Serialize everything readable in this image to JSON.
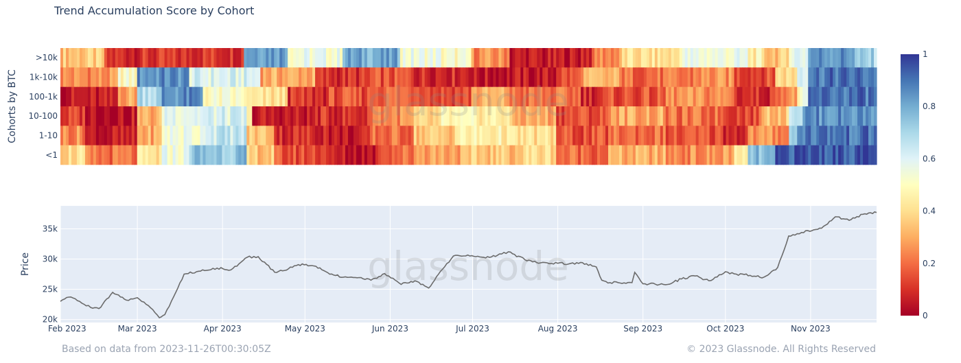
{
  "title": "Trend Accumulation Score by Cohort",
  "footer": {
    "source": "Based on data from 2023-11-26T00:30:05Z",
    "copyright": "© 2023 Glassnode. All Rights Reserved"
  },
  "watermark": "glassnode",
  "chart_data": [
    {
      "type": "heatmap",
      "title": "Trend Accumulation Score by Cohort",
      "ylabel": "Cohorts by BTC",
      "cohorts": [
        ">10k",
        "1k-10k",
        "100-1k",
        "10-100",
        "1-10",
        "<1"
      ],
      "x_start": "2023-02-01",
      "x_end": "2023-11-25",
      "colorscale": [
        "#a50026",
        "#d73027",
        "#f46d43",
        "#fdae61",
        "#fee090",
        "#ffffbf",
        "#e0f3f8",
        "#abd9e9",
        "#74add1",
        "#4575b4",
        "#313695"
      ],
      "colorbar": {
        "ticks": [
          0,
          0.2,
          0.4,
          0.6,
          0.8,
          1
        ],
        "labels": [
          "0",
          "0.2",
          "0.4",
          "0.6",
          "0.8",
          "1"
        ]
      },
      "segments": {
        ">10k": [
          [
            "2023-02-01",
            0.35
          ],
          [
            "2023-02-17",
            0.1
          ],
          [
            "2023-03-20",
            0.12
          ],
          [
            "2023-04-09",
            0.85
          ],
          [
            "2023-04-25",
            0.55
          ],
          [
            "2023-05-15",
            0.8
          ],
          [
            "2023-06-05",
            0.55
          ],
          [
            "2023-06-20",
            0.5
          ],
          [
            "2023-07-01",
            0.25
          ],
          [
            "2023-07-15",
            0.05
          ],
          [
            "2023-08-10",
            0.1
          ],
          [
            "2023-08-15",
            0.25
          ],
          [
            "2023-08-25",
            0.4
          ],
          [
            "2023-09-15",
            0.55
          ],
          [
            "2023-10-10",
            0.45
          ],
          [
            "2023-10-15",
            0.35
          ],
          [
            "2023-10-25",
            0.6
          ],
          [
            "2023-11-01",
            0.85
          ],
          [
            "2023-11-18",
            0.7
          ]
        ],
        "1k-10k": [
          [
            "2023-02-01",
            0.25
          ],
          [
            "2023-02-22",
            0.5
          ],
          [
            "2023-03-01",
            0.85
          ],
          [
            "2023-03-20",
            0.6
          ],
          [
            "2023-04-15",
            0.3
          ],
          [
            "2023-05-05",
            0.1
          ],
          [
            "2023-05-25",
            0.15
          ],
          [
            "2023-06-10",
            0.1
          ],
          [
            "2023-07-01",
            0.05
          ],
          [
            "2023-08-01",
            0.15
          ],
          [
            "2023-08-10",
            0.3
          ],
          [
            "2023-08-25",
            0.2
          ],
          [
            "2023-09-20",
            0.25
          ],
          [
            "2023-10-05",
            0.15
          ],
          [
            "2023-10-20",
            0.4
          ],
          [
            "2023-10-28",
            0.65
          ],
          [
            "2023-11-01",
            0.9
          ]
        ],
        "100-1k": [
          [
            "2023-02-01",
            0.05
          ],
          [
            "2023-02-22",
            0.3
          ],
          [
            "2023-03-01",
            0.7
          ],
          [
            "2023-03-10",
            0.85
          ],
          [
            "2023-03-25",
            0.5
          ],
          [
            "2023-04-10",
            0.4
          ],
          [
            "2023-04-25",
            0.1
          ],
          [
            "2023-05-10",
            0.15
          ],
          [
            "2023-05-25",
            0.2
          ],
          [
            "2023-06-15",
            0.15
          ],
          [
            "2023-07-01",
            0.3
          ],
          [
            "2023-07-15",
            0.2
          ],
          [
            "2023-08-10",
            0.1
          ],
          [
            "2023-08-20",
            0.15
          ],
          [
            "2023-09-10",
            0.25
          ],
          [
            "2023-10-05",
            0.1
          ],
          [
            "2023-10-20",
            0.25
          ],
          [
            "2023-10-28",
            0.5
          ],
          [
            "2023-11-01",
            0.9
          ]
        ],
        "10-100": [
          [
            "2023-02-01",
            0.12
          ],
          [
            "2023-02-10",
            0.05
          ],
          [
            "2023-03-01",
            0.3
          ],
          [
            "2023-03-10",
            0.6
          ],
          [
            "2023-04-10",
            0.4
          ],
          [
            "2023-04-12",
            0.05
          ],
          [
            "2023-05-05",
            0.1
          ],
          [
            "2023-05-25",
            0.25
          ],
          [
            "2023-06-10",
            0.35
          ],
          [
            "2023-06-20",
            0.45
          ],
          [
            "2023-07-15",
            0.3
          ],
          [
            "2023-08-01",
            0.15
          ],
          [
            "2023-08-20",
            0.3
          ],
          [
            "2023-09-10",
            0.2
          ],
          [
            "2023-10-01",
            0.15
          ],
          [
            "2023-10-15",
            0.35
          ],
          [
            "2023-10-25",
            0.7
          ],
          [
            "2023-10-30",
            0.85
          ]
        ],
        "1-10": [
          [
            "2023-02-01",
            0.25
          ],
          [
            "2023-02-10",
            0.05
          ],
          [
            "2023-03-01",
            0.3
          ],
          [
            "2023-03-10",
            0.55
          ],
          [
            "2023-03-25",
            0.65
          ],
          [
            "2023-04-10",
            0.35
          ],
          [
            "2023-04-20",
            0.1
          ],
          [
            "2023-05-10",
            0.05
          ],
          [
            "2023-05-25",
            0.2
          ],
          [
            "2023-06-10",
            0.35
          ],
          [
            "2023-06-25",
            0.45
          ],
          [
            "2023-07-15",
            0.4
          ],
          [
            "2023-08-01",
            0.15
          ],
          [
            "2023-08-20",
            0.2
          ],
          [
            "2023-09-10",
            0.15
          ],
          [
            "2023-10-01",
            0.1
          ],
          [
            "2023-10-10",
            0.25
          ],
          [
            "2023-10-25",
            0.7
          ],
          [
            "2023-10-28",
            0.9
          ]
        ],
        "<1": [
          [
            "2023-02-01",
            0.4
          ],
          [
            "2023-02-10",
            0.2
          ],
          [
            "2023-03-01",
            0.4
          ],
          [
            "2023-03-10",
            0.55
          ],
          [
            "2023-03-20",
            0.75
          ],
          [
            "2023-04-10",
            0.35
          ],
          [
            "2023-04-20",
            0.15
          ],
          [
            "2023-05-10",
            0.05
          ],
          [
            "2023-05-28",
            0.2
          ],
          [
            "2023-06-10",
            0.3
          ],
          [
            "2023-07-01",
            0.35
          ],
          [
            "2023-07-20",
            0.4
          ],
          [
            "2023-08-01",
            0.2
          ],
          [
            "2023-08-20",
            0.3
          ],
          [
            "2023-09-10",
            0.25
          ],
          [
            "2023-10-01",
            0.3
          ],
          [
            "2023-10-05",
            0.4
          ],
          [
            "2023-10-10",
            0.75
          ],
          [
            "2023-10-20",
            0.95
          ]
        ]
      }
    },
    {
      "type": "line",
      "ylabel": "Price",
      "x_ticks": [
        "2023-02-01",
        "2023-03-01",
        "2023-04-01",
        "2023-05-01",
        "2023-06-01",
        "2023-07-01",
        "2023-08-01",
        "2023-09-01",
        "2023-10-01",
        "2023-11-01"
      ],
      "x_tick_labels": [
        "Feb 2023",
        "Mar 2023",
        "Apr 2023",
        "May 2023",
        "Jun 2023",
        "Jul 2023",
        "Aug 2023",
        "Sep 2023",
        "Oct 2023",
        "Nov 2023"
      ],
      "y_ticks": [
        20000,
        25000,
        30000,
        35000
      ],
      "y_tick_labels": [
        "20k",
        "25k",
        "30k",
        "35k"
      ],
      "ylim": [
        19500,
        38800
      ],
      "series": [
        {
          "color": "#6b6b6b",
          "x": [
            "2023-02-01",
            "2023-02-04",
            "2023-02-08",
            "2023-02-12",
            "2023-02-15",
            "2023-02-20",
            "2023-02-25",
            "2023-03-01",
            "2023-03-05",
            "2023-03-09",
            "2023-03-11",
            "2023-03-15",
            "2023-03-18",
            "2023-03-24",
            "2023-03-30",
            "2023-04-04",
            "2023-04-10",
            "2023-04-14",
            "2023-04-20",
            "2023-04-25",
            "2023-04-30",
            "2023-05-05",
            "2023-05-10",
            "2023-05-15",
            "2023-05-20",
            "2023-05-25",
            "2023-05-30",
            "2023-06-05",
            "2023-06-10",
            "2023-06-15",
            "2023-06-20",
            "2023-06-24",
            "2023-06-30",
            "2023-07-05",
            "2023-07-10",
            "2023-07-14",
            "2023-07-20",
            "2023-07-25",
            "2023-08-01",
            "2023-08-05",
            "2023-08-10",
            "2023-08-15",
            "2023-08-17",
            "2023-08-20",
            "2023-08-28",
            "2023-08-29",
            "2023-09-01",
            "2023-09-10",
            "2023-09-15",
            "2023-09-20",
            "2023-09-25",
            "2023-10-01",
            "2023-10-05",
            "2023-10-10",
            "2023-10-15",
            "2023-10-20",
            "2023-10-24",
            "2023-10-31",
            "2023-11-05",
            "2023-11-10",
            "2023-11-15",
            "2023-11-20",
            "2023-11-25"
          ],
          "y": [
            23000,
            23700,
            23000,
            22000,
            21800,
            24500,
            23200,
            23600,
            22300,
            20300,
            20800,
            24500,
            27500,
            28000,
            28500,
            28200,
            30300,
            30400,
            27800,
            28400,
            29200,
            28800,
            27500,
            27000,
            26900,
            26500,
            27600,
            25800,
            26400,
            25200,
            28300,
            30500,
            30500,
            30300,
            30600,
            31200,
            29900,
            29300,
            29300,
            29200,
            29400,
            28700,
            26500,
            26100,
            26100,
            27800,
            25900,
            25800,
            26700,
            27200,
            26400,
            27900,
            27500,
            27300,
            27000,
            28600,
            33800,
            34700,
            35100,
            37000,
            36400,
            37400,
            37700
          ]
        }
      ]
    }
  ]
}
